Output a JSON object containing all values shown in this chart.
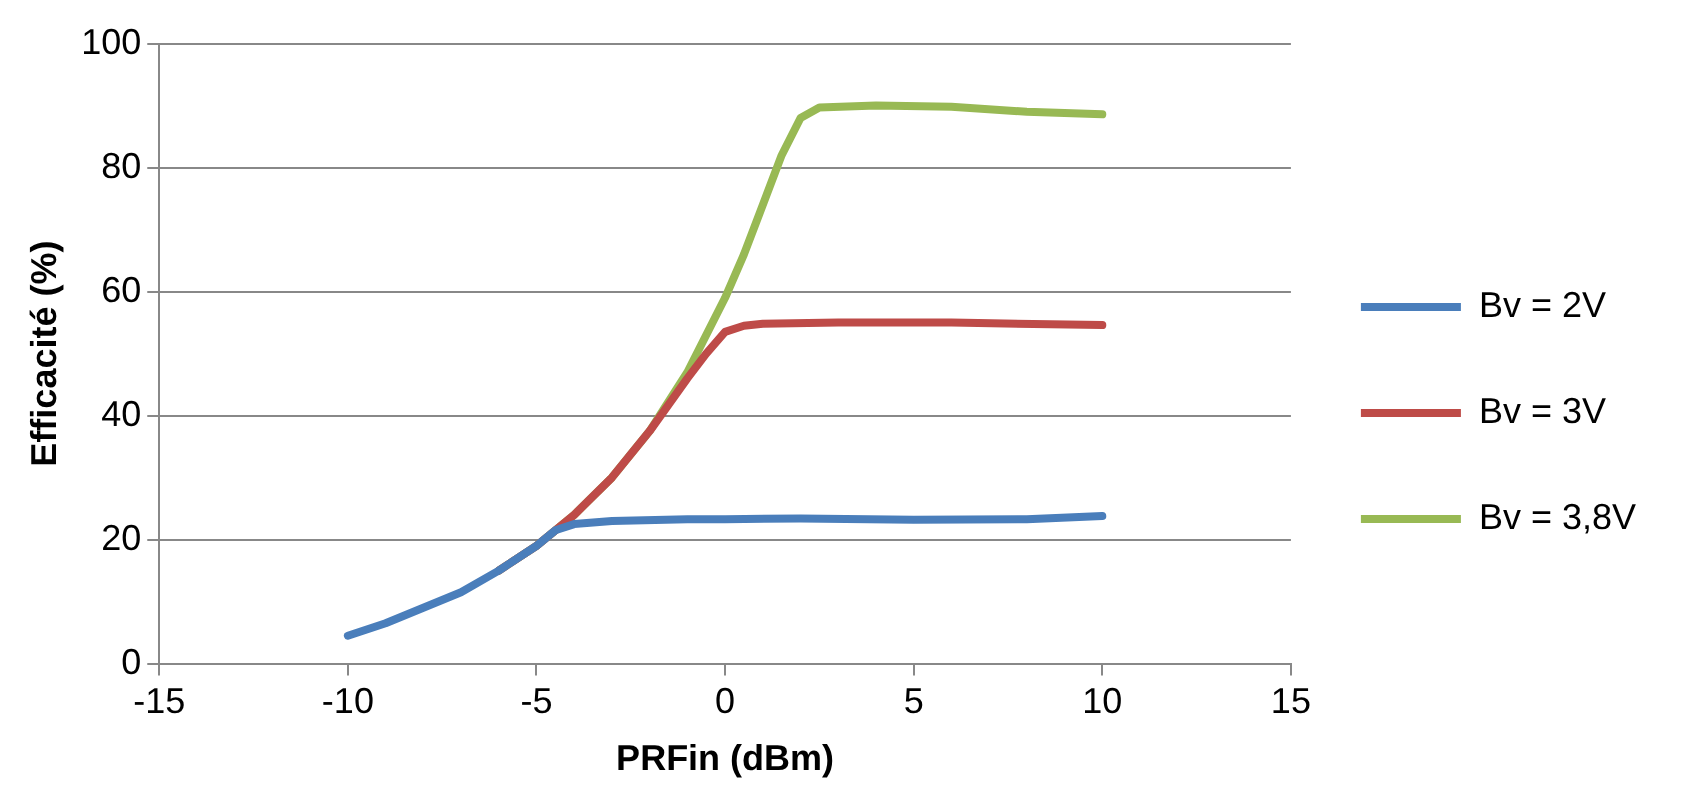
{
  "chart_data": {
    "type": "line",
    "xlabel": "PRFin (dBm)",
    "ylabel": "Efficacité (%)",
    "xlim": [
      -15,
      15
    ],
    "xticks": [
      -15,
      -10,
      -5,
      0,
      5,
      10,
      15
    ],
    "ylim": [
      0,
      100
    ],
    "yticks": [
      0,
      20,
      40,
      60,
      80,
      100
    ],
    "grid": "y",
    "legend": "right",
    "marker": "none",
    "line_style": "solid",
    "series": [
      {
        "name": "Bv = 2V",
        "color": "#4a7ebb",
        "x": [
          -10,
          -9,
          -8,
          -7,
          -6,
          -5,
          -4.5,
          -4,
          -3,
          -1,
          0,
          2,
          5,
          8,
          10
        ],
        "values": [
          4.5,
          6.5,
          9,
          11.5,
          15,
          19,
          21.5,
          22.5,
          23,
          23.3,
          23.3,
          23.4,
          23.2,
          23.3,
          23.8
        ]
      },
      {
        "name": "Bv = 3V",
        "color": "#be4b48",
        "x": [
          -6,
          -5,
          -4,
          -3,
          -2,
          -1,
          -0.5,
          0,
          0.5,
          1,
          3,
          6,
          10
        ],
        "values": [
          15,
          19,
          24,
          30,
          37.5,
          46,
          50,
          53.5,
          54.5,
          54.8,
          55,
          55,
          54.6
        ]
      },
      {
        "name": "Bv = 3,8V",
        "color": "#98b954",
        "x": [
          -6,
          -5,
          -4,
          -3,
          -2,
          -1,
          0,
          0.5,
          1,
          1.5,
          2,
          2.5,
          4,
          6,
          8,
          10
        ],
        "values": [
          15,
          19,
          24,
          30,
          37.5,
          47,
          59,
          66,
          74,
          82,
          88,
          89.7,
          90,
          89.8,
          89,
          88.6
        ]
      }
    ]
  }
}
